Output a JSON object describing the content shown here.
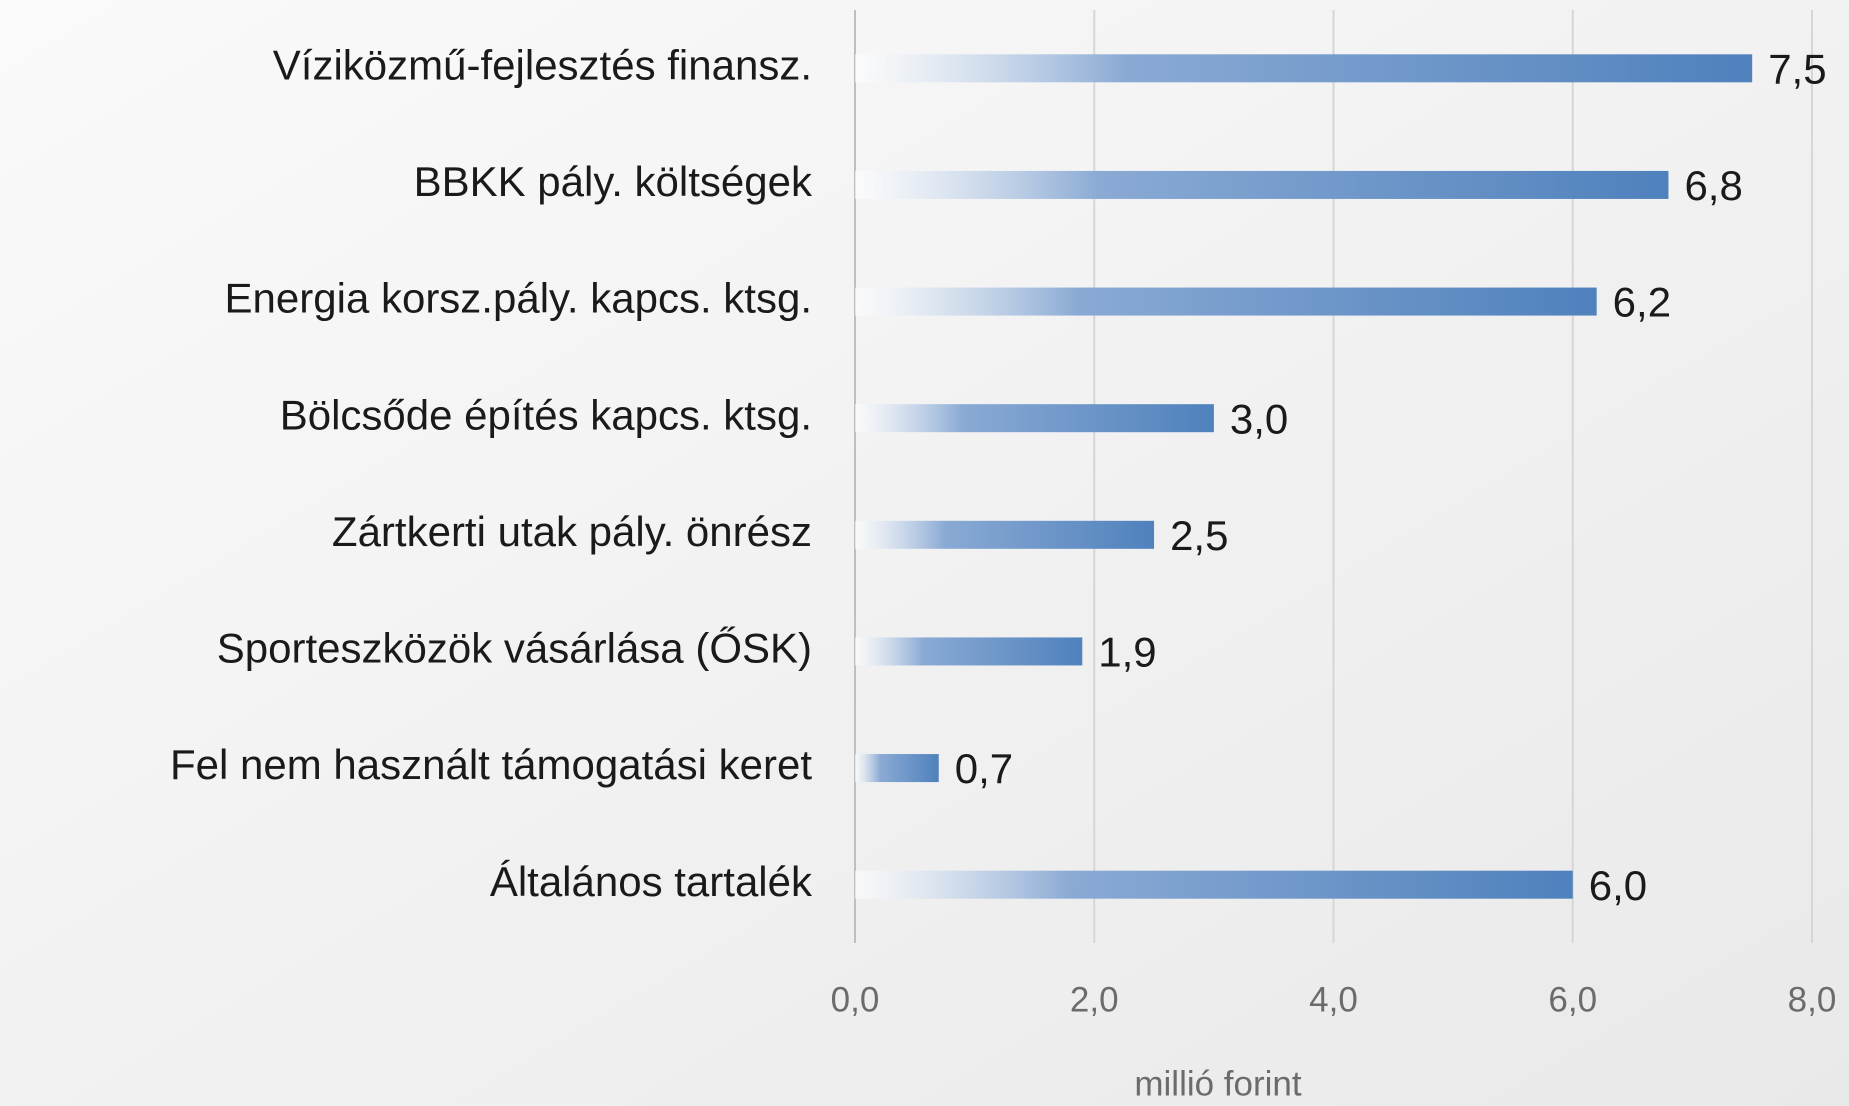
{
  "chart_data": {
    "type": "barh",
    "categories": [
      "Víziközmű-fejlesztés finansz.",
      "BBKK pály. költségek",
      "Energia korsz.pály. kapcs. ktsg.",
      "Bölcsőde építés kapcs. ktsg.",
      "Zártkerti utak pály. önrész",
      "Sporteszközök vásárlása (ŐSK)",
      "Fel nem használt támogatási keret",
      "Általános tartalék"
    ],
    "values": [
      7.5,
      6.8,
      6.2,
      3.0,
      2.5,
      1.9,
      0.7,
      6.0
    ],
    "value_labels": [
      "7,5",
      "6,8",
      "6,2",
      "3,0",
      "2,5",
      "1,9",
      "0,7",
      "6,0"
    ],
    "color": "#4f81bd",
    "xlabel": "millió forint",
    "xlim": [
      0,
      8
    ],
    "xticks": [
      {
        "value": 0,
        "label": "0,0"
      },
      {
        "value": 2,
        "label": "2,0"
      },
      {
        "value": 4,
        "label": "4,0"
      },
      {
        "value": 6,
        "label": "6,0"
      },
      {
        "value": 8,
        "label": "8,0"
      }
    ],
    "grid": true
  }
}
